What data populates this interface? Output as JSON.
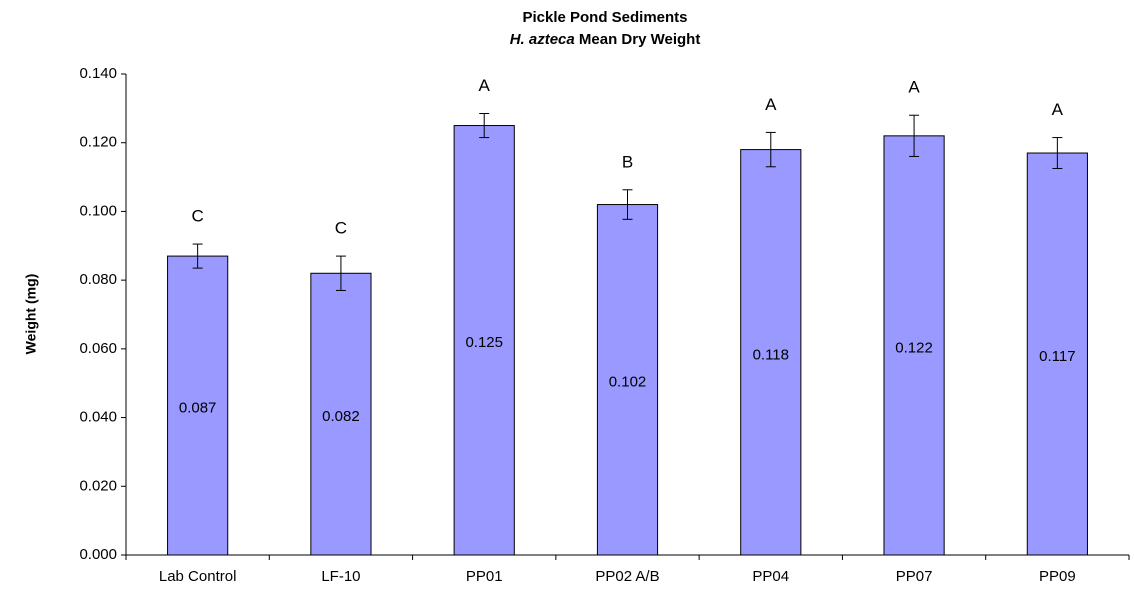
{
  "chart_data": {
    "type": "bar",
    "title": "Pickle Pond Sediments",
    "subtitle": [
      "H. azteca",
      "Mean Dry Weight"
    ],
    "y_label": "Weight (mg)",
    "categories": [
      "Lab Control",
      "LF-10",
      "PP01",
      "PP02 A/B",
      "PP04",
      "PP07",
      "PP09"
    ],
    "values": [
      0.087,
      0.082,
      0.125,
      0.102,
      0.118,
      0.122,
      0.117
    ],
    "errors": [
      0.0035,
      0.005,
      0.0035,
      0.0043,
      0.005,
      0.006,
      0.0045
    ],
    "significance_labels": [
      "C",
      "C",
      "A",
      "B",
      "A",
      "A",
      "A"
    ],
    "color": "#9999ff",
    "ylim": [
      0,
      0.14
    ],
    "yticks": [
      {
        "value": 0,
        "label": "0.000"
      },
      {
        "value": 0.02,
        "label": "0.020"
      },
      {
        "value": 0.04,
        "label": "0.040"
      },
      {
        "value": 0.06,
        "label": "0.060"
      },
      {
        "value": 0.08,
        "label": "0.080"
      },
      {
        "value": 0.1,
        "label": "0.100"
      },
      {
        "value": 0.12,
        "label": "0.120"
      },
      {
        "value": 0.14,
        "label": "0.140"
      }
    ],
    "grid": false
  }
}
